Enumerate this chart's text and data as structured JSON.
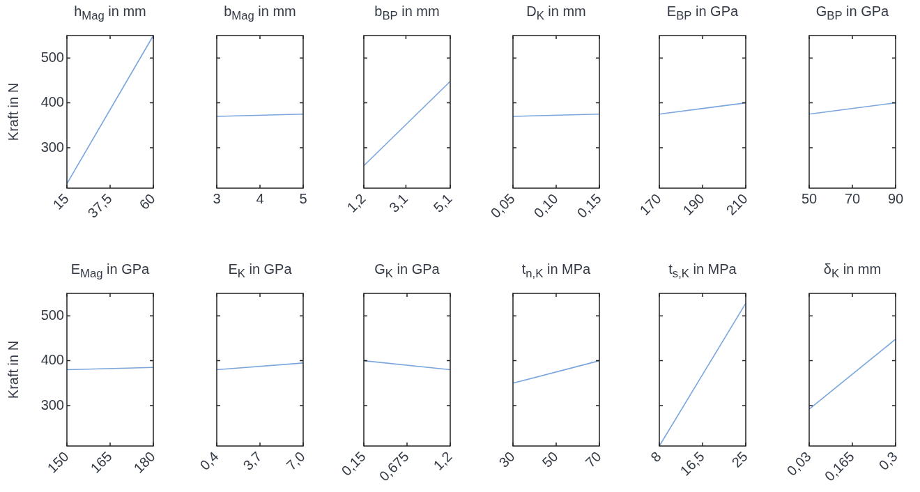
{
  "chart_data": [
    {
      "type": "line",
      "title": "h$_{Mag}$ in mm",
      "ylabel": "Kraft in N",
      "x": [
        15,
        60
      ],
      "values": [
        220,
        550
      ],
      "color": "#7aa6dd",
      "marker": "none",
      "xlim": [
        15,
        60
      ],
      "xticks": [
        15,
        {
          "value": 37.5,
          "label": "37,5"
        },
        60
      ],
      "ylim": [
        210,
        550
      ],
      "yticks": [
        300,
        400,
        500
      ]
    },
    {
      "type": "line",
      "title": "b$_{Mag}$ in mm",
      "x": [
        3,
        5
      ],
      "values": [
        370,
        375
      ],
      "color": "#7aa6dd",
      "marker": "none",
      "xlim": [
        3,
        5
      ],
      "xticks": [
        3,
        4,
        5
      ],
      "ylim": [
        210,
        550
      ],
      "yticks": [
        300,
        400,
        500
      ],
      "tick_labels": "x"
    },
    {
      "type": "line",
      "title": "b$_{BP}$ in mm",
      "x": [
        1.2,
        5.1
      ],
      "values": [
        260,
        448
      ],
      "color": "#7aa6dd",
      "marker": "none",
      "xlim": [
        1.2,
        5.1
      ],
      "xticks": [
        {
          "value": 1.2,
          "label": "1,2"
        },
        {
          "value": 3.1,
          "label": "3,1"
        },
        {
          "value": 5.1,
          "label": "5,1"
        }
      ],
      "ylim": [
        210,
        550
      ],
      "yticks": [
        300,
        400,
        500
      ],
      "tick_labels": "x"
    },
    {
      "type": "line",
      "title": "D$_{K}$ in mm",
      "x": [
        0.05,
        0.15
      ],
      "values": [
        370,
        375
      ],
      "color": "#7aa6dd",
      "marker": "none",
      "xlim": [
        0.05,
        0.15
      ],
      "xticks": [
        {
          "value": 0.05,
          "label": "0,05"
        },
        {
          "value": 0.1,
          "label": "0,10"
        },
        {
          "value": 0.15,
          "label": "0,15"
        }
      ],
      "ylim": [
        210,
        550
      ],
      "yticks": [
        300,
        400,
        500
      ],
      "tick_labels": "x"
    },
    {
      "type": "line",
      "title": "E$_{BP}$ in GPa",
      "x": [
        170,
        210
      ],
      "values": [
        375,
        400
      ],
      "color": "#7aa6dd",
      "marker": "none",
      "xlim": [
        170,
        210
      ],
      "xticks": [
        170,
        190,
        210
      ],
      "ylim": [
        210,
        550
      ],
      "yticks": [
        300,
        400,
        500
      ],
      "tick_labels": "x"
    },
    {
      "type": "line",
      "title": "G$_{BP}$ in GPa",
      "x": [
        50,
        90
      ],
      "values": [
        375,
        400
      ],
      "color": "#7aa6dd",
      "marker": "none",
      "xlim": [
        50,
        90
      ],
      "xticks": [
        50,
        70,
        90
      ],
      "ylim": [
        210,
        550
      ],
      "yticks": [
        300,
        400,
        500
      ],
      "tick_labels": "x"
    },
    {
      "type": "line",
      "title": "E$_{Mag}$ in GPa",
      "ylabel": "Kraft in N",
      "x": [
        150,
        180
      ],
      "values": [
        380,
        385
      ],
      "color": "#7aa6dd",
      "marker": "none",
      "xlim": [
        150,
        180
      ],
      "xticks": [
        150,
        165,
        180
      ],
      "ylim": [
        210,
        550
      ],
      "yticks": [
        300,
        400,
        500
      ]
    },
    {
      "type": "line",
      "title": "E$_{K}$ in GPa",
      "x": [
        0.4,
        7.0
      ],
      "values": [
        380,
        395
      ],
      "color": "#7aa6dd",
      "marker": "none",
      "xlim": [
        0.4,
        7.0
      ],
      "xticks": [
        {
          "value": 0.4,
          "label": "0,4"
        },
        {
          "value": 3.7,
          "label": "3,7"
        },
        {
          "value": 7.0,
          "label": "7,0"
        }
      ],
      "ylim": [
        210,
        550
      ],
      "yticks": [
        300,
        400,
        500
      ],
      "tick_labels": "x"
    },
    {
      "type": "line",
      "title": "G$_{K}$ in GPa",
      "x": [
        0.15,
        1.2
      ],
      "values": [
        400,
        380
      ],
      "color": "#7aa6dd",
      "marker": "none",
      "xlim": [
        0.15,
        1.2
      ],
      "xticks": [
        {
          "value": 0.15,
          "label": "0,15"
        },
        {
          "value": 0.675,
          "label": "0,675"
        },
        {
          "value": 1.2,
          "label": "1,2"
        }
      ],
      "ylim": [
        210,
        550
      ],
      "yticks": [
        300,
        400,
        500
      ],
      "tick_labels": "x"
    },
    {
      "type": "line",
      "title": "t$_{n,K}$ in MPa",
      "x": [
        30,
        70
      ],
      "values": [
        350,
        400
      ],
      "color": "#7aa6dd",
      "marker": "none",
      "xlim": [
        30,
        70
      ],
      "xticks": [
        30,
        50,
        70
      ],
      "ylim": [
        210,
        550
      ],
      "yticks": [
        300,
        400,
        500
      ],
      "tick_labels": "x"
    },
    {
      "type": "line",
      "title": "t$_{s,K}$ in MPa",
      "x": [
        8,
        25
      ],
      "values": [
        210,
        528
      ],
      "color": "#7aa6dd",
      "marker": "none",
      "xlim": [
        8,
        25
      ],
      "xticks": [
        8,
        {
          "value": 16.5,
          "label": "16,5"
        },
        25
      ],
      "ylim": [
        210,
        550
      ],
      "yticks": [
        300,
        400,
        500
      ],
      "tick_labels": "x"
    },
    {
      "type": "line",
      "title": "δ$_{K}$ in mm",
      "x": [
        0.03,
        0.3
      ],
      "values": [
        292,
        448
      ],
      "color": "#7aa6dd",
      "marker": "none",
      "xlim": [
        0.03,
        0.3
      ],
      "xticks": [
        {
          "value": 0.03,
          "label": "0,03"
        },
        {
          "value": 0.165,
          "label": "0,165"
        },
        {
          "value": 0.3,
          "label": "0,3"
        }
      ],
      "ylim": [
        210,
        550
      ],
      "yticks": [
        300,
        400,
        500
      ],
      "tick_labels": "x"
    }
  ]
}
